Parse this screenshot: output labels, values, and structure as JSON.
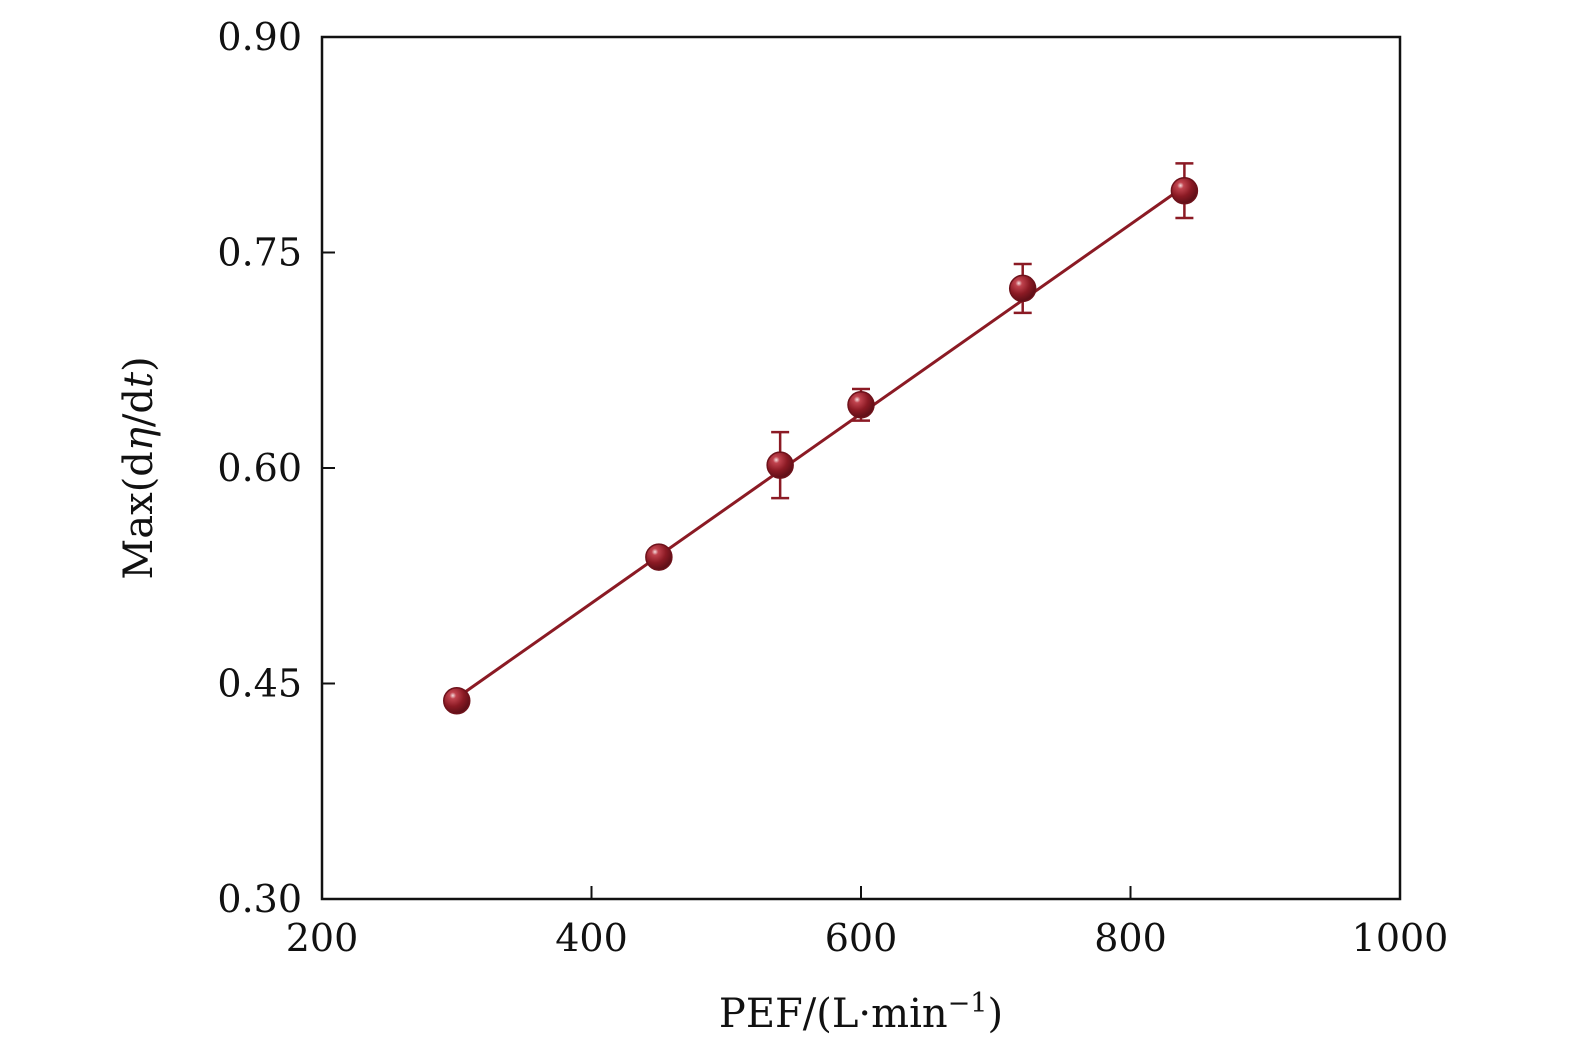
{
  "chart_data": {
    "type": "scatter",
    "title": "",
    "xlabel": {
      "prefix": "PEF/(L·min",
      "superscript": "−1",
      "suffix": ")"
    },
    "ylabel": {
      "prefix": "Max(d",
      "italic1": "η",
      "middle": "/d",
      "italic2": "t",
      "suffix": ")"
    },
    "xlim": [
      200,
      1000
    ],
    "ylim": [
      0.3,
      0.9
    ],
    "x_ticks": [
      "200",
      "400",
      "600",
      "800",
      "1000"
    ],
    "y_ticks": [
      "0.30",
      "0.45",
      "0.60",
      "0.75",
      "0.90"
    ],
    "grid": false,
    "legend": "none",
    "series": [
      {
        "x": [
          300,
          450,
          540,
          600,
          720,
          840
        ],
        "y": [
          0.438,
          0.538,
          0.602,
          0.644,
          0.725,
          0.793
        ],
        "error": [
          0.0,
          0.0,
          0.023,
          0.011,
          0.017,
          0.019
        ]
      }
    ],
    "fit_line": {
      "x": [
        300,
        840
      ],
      "y": [
        0.44,
        0.796
      ]
    },
    "colors": {
      "series": "#8b1a24",
      "axis": "#111111"
    }
  }
}
